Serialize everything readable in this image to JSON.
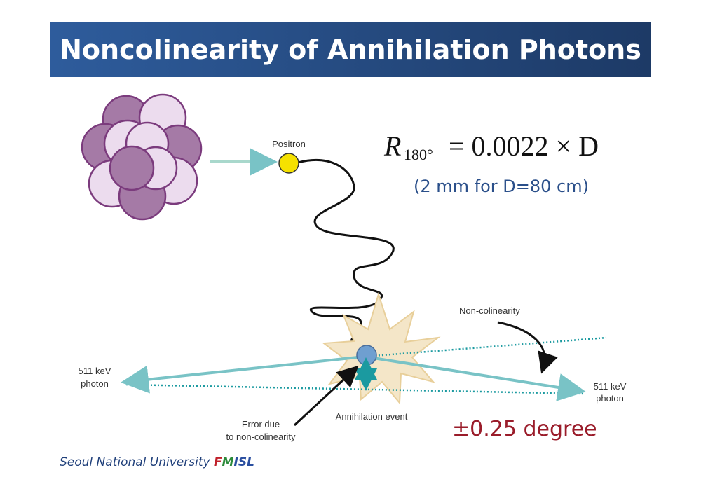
{
  "title": "Noncolinearity of Annihilation Photons",
  "formula": {
    "symbol": "R",
    "subscript": "180°",
    "expression": "= 0.0022 × D",
    "note": "(2 mm for D=80 cm)"
  },
  "labels": {
    "positron": "Positron",
    "non_colinearity": "Non-colinearity",
    "photon_left": [
      "511 keV",
      "photon"
    ],
    "photon_right": [
      "511 keV",
      "photon"
    ],
    "annihilation_event": "Annihilation event",
    "error": [
      "Error due",
      "to non-colinearity"
    ]
  },
  "angle": "±0.25 degree",
  "footer": {
    "text": "Seoul National University",
    "logo": [
      "F",
      "M",
      "I",
      "S",
      "L"
    ]
  }
}
